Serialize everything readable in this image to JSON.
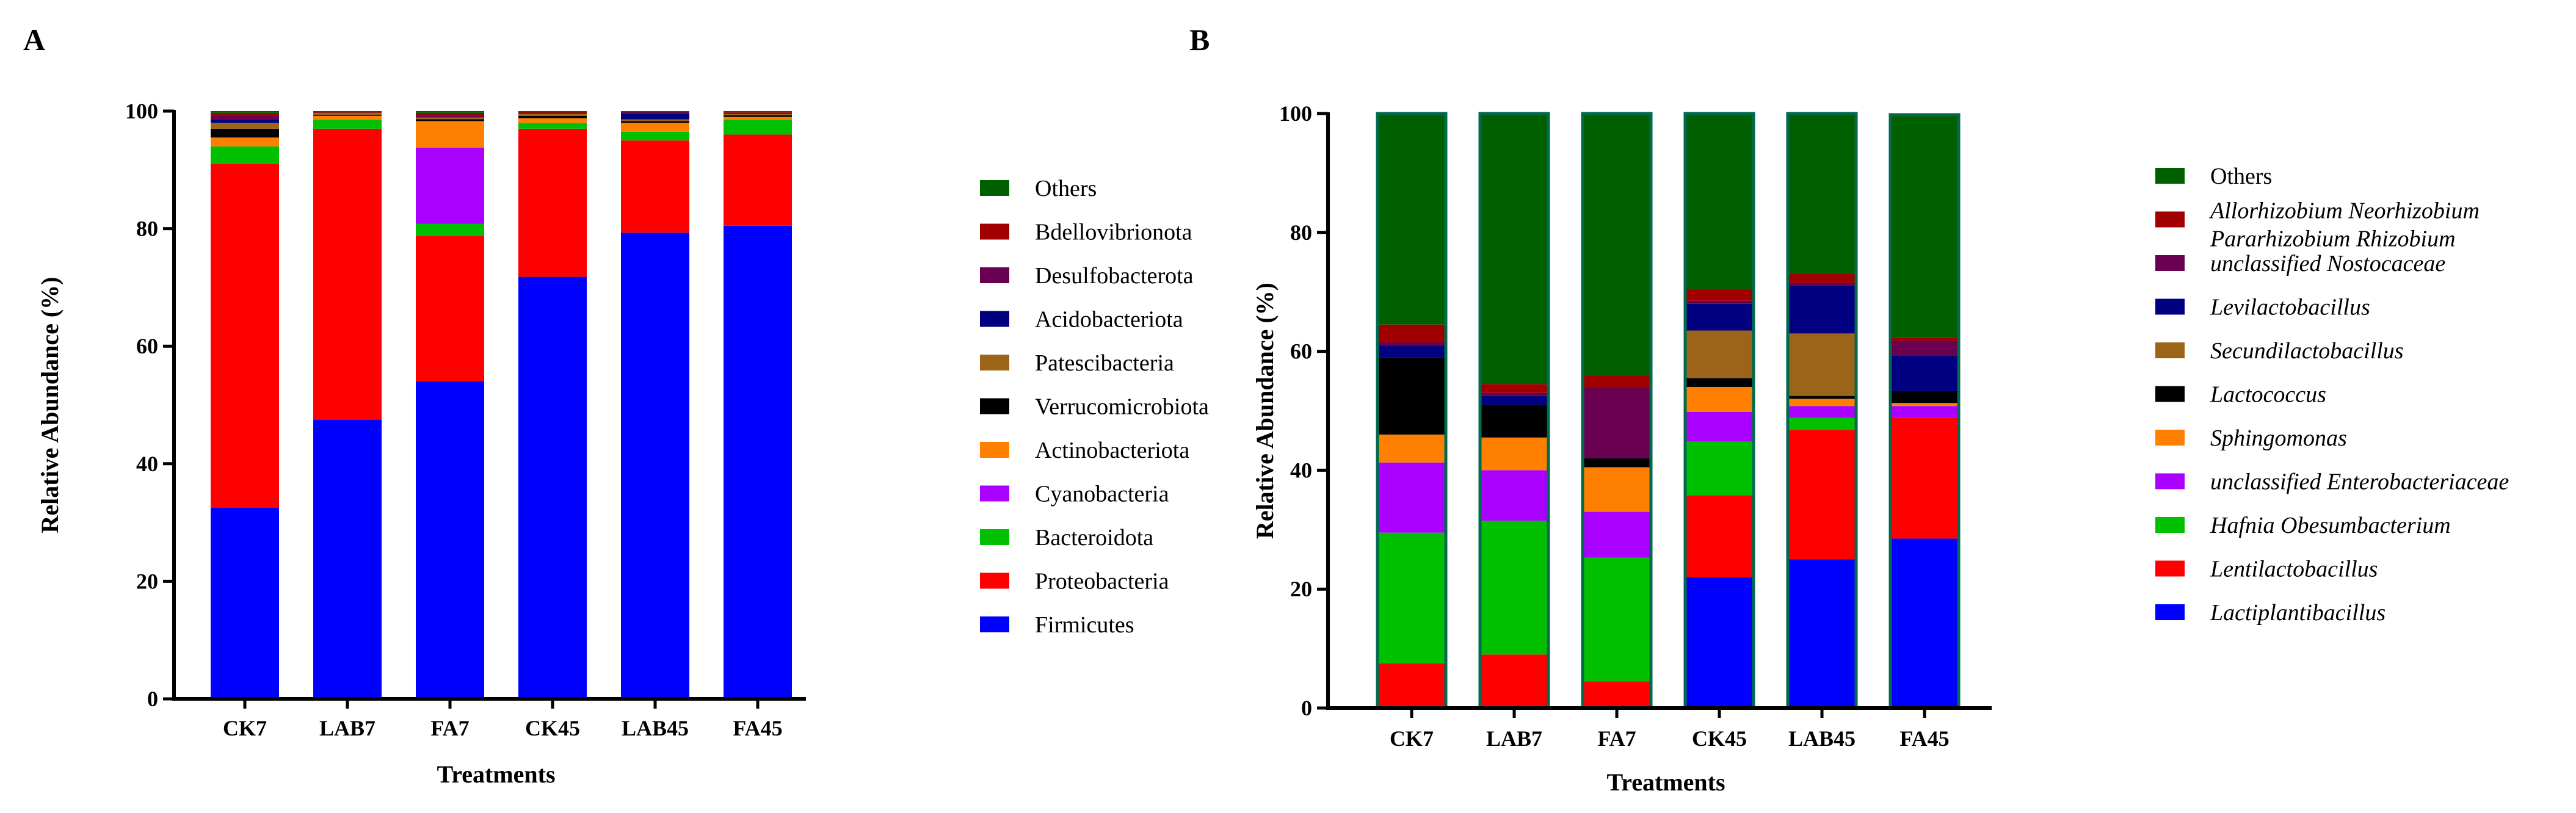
{
  "chart_data": [
    {
      "panel": "A",
      "type": "bar",
      "stacked": true,
      "xlabel": "Treatments",
      "ylabel": "Relative Abundance (%)",
      "ylim": [
        0,
        100
      ],
      "yticks": [
        "0",
        "20",
        "40",
        "60",
        "80",
        "100"
      ],
      "categories": [
        "CK7",
        "LAB7",
        "FA7",
        "CK45",
        "LAB45",
        "FA45"
      ],
      "series": [
        {
          "name": "Firmicutes",
          "color": "#0000ff",
          "values": [
            32.5,
            47.5,
            54.0,
            71.8,
            79.3,
            80.5
          ]
        },
        {
          "name": "Proteobacteria",
          "color": "#ff0000",
          "values": [
            58.5,
            49.5,
            24.8,
            25.2,
            15.7,
            15.5
          ]
        },
        {
          "name": "Bacteroidota",
          "color": "#00c000",
          "values": [
            3.0,
            1.5,
            2.0,
            1.0,
            1.5,
            2.5
          ]
        },
        {
          "name": "Cyanobacteria",
          "color": "#aa00ff",
          "values": [
            0.0,
            0.0,
            13.0,
            0.0,
            0.0,
            0.0
          ]
        },
        {
          "name": "Actinobacteriota",
          "color": "#ff8000",
          "values": [
            1.5,
            0.7,
            4.5,
            0.8,
            1.5,
            0.5
          ]
        },
        {
          "name": "Verrucomicrobiota",
          "color": "#000000",
          "values": [
            1.5,
            0.2,
            0.3,
            0.4,
            0.3,
            0.3
          ]
        },
        {
          "name": "Patescibacteria",
          "color": "#9c6418",
          "values": [
            1.0,
            0.3,
            0.3,
            0.3,
            0.3,
            0.2
          ]
        },
        {
          "name": "Acidobacteriota",
          "color": "#000080",
          "values": [
            0.5,
            0.0,
            0.0,
            0.0,
            1.0,
            0.0
          ]
        },
        {
          "name": "Desulfobacterota",
          "color": "#6a0050",
          "values": [
            0.8,
            0.0,
            0.4,
            0.0,
            0.2,
            0.2
          ]
        },
        {
          "name": "Bdellovibrionota",
          "color": "#a00000",
          "values": [
            0.4,
            0.1,
            0.4,
            0.3,
            0.0,
            0.1
          ]
        },
        {
          "name": "Others",
          "color": "#006000",
          "values": [
            0.3,
            0.2,
            0.3,
            0.2,
            0.2,
            0.2
          ]
        }
      ]
    },
    {
      "panel": "B",
      "type": "bar",
      "stacked": true,
      "xlabel": "Treatments",
      "ylabel": "Relative Abundance (%)",
      "ylim": [
        0,
        100
      ],
      "yticks": [
        "0",
        "20",
        "40",
        "60",
        "80",
        "100"
      ],
      "categories": [
        "CK7",
        "LAB7",
        "FA7",
        "CK45",
        "LAB45",
        "FA45"
      ],
      "series": [
        {
          "name": "Lactiplantibacillus",
          "color": "#0000ff",
          "values": [
            0.0,
            0.0,
            0.0,
            22.0,
            25.0,
            28.5
          ]
        },
        {
          "name": "Lentilactobacillus",
          "color": "#ff0000",
          "values": [
            7.5,
            9.0,
            4.5,
            13.8,
            21.8,
            20.3
          ]
        },
        {
          "name": "Hafnia Obesumbacterium",
          "color": "#00c000",
          "values": [
            22.0,
            22.5,
            20.8,
            9.0,
            2.0,
            0.0
          ]
        },
        {
          "name": "unclassified Enterobacteriaceae",
          "color": "#aa00ff",
          "values": [
            11.8,
            8.5,
            7.7,
            5.0,
            2.0,
            2.0
          ]
        },
        {
          "name": "Sphingomonas",
          "color": "#ff8000",
          "values": [
            4.7,
            5.5,
            7.5,
            4.2,
            1.2,
            0.5
          ]
        },
        {
          "name": "Lactococcus",
          "color": "#000000",
          "values": [
            13.0,
            5.5,
            1.5,
            1.5,
            0.5,
            2.0
          ]
        },
        {
          "name": "Secundilactobacillus",
          "color": "#9c6418",
          "values": [
            0.0,
            0.0,
            0.0,
            8.0,
            10.5,
            0.0
          ]
        },
        {
          "name": "Levilactobacillus",
          "color": "#000080",
          "values": [
            2.0,
            1.5,
            0.0,
            4.5,
            8.0,
            6.0
          ]
        },
        {
          "name": "unclassified Nostocaceae",
          "color": "#6a0050",
          "values": [
            0.5,
            0.5,
            12.0,
            0.5,
            0.5,
            2.5
          ]
        },
        {
          "name": "Allorhizobium Neorhizobium Pararhizobium Rhizobium",
          "color": "#a00000",
          "values": [
            3.0,
            1.5,
            2.0,
            2.0,
            1.5,
            0.5
          ]
        },
        {
          "name": "Others",
          "color": "#006000",
          "values": [
            35.5,
            45.5,
            44.0,
            29.5,
            27.0,
            37.5
          ]
        }
      ]
    }
  ]
}
